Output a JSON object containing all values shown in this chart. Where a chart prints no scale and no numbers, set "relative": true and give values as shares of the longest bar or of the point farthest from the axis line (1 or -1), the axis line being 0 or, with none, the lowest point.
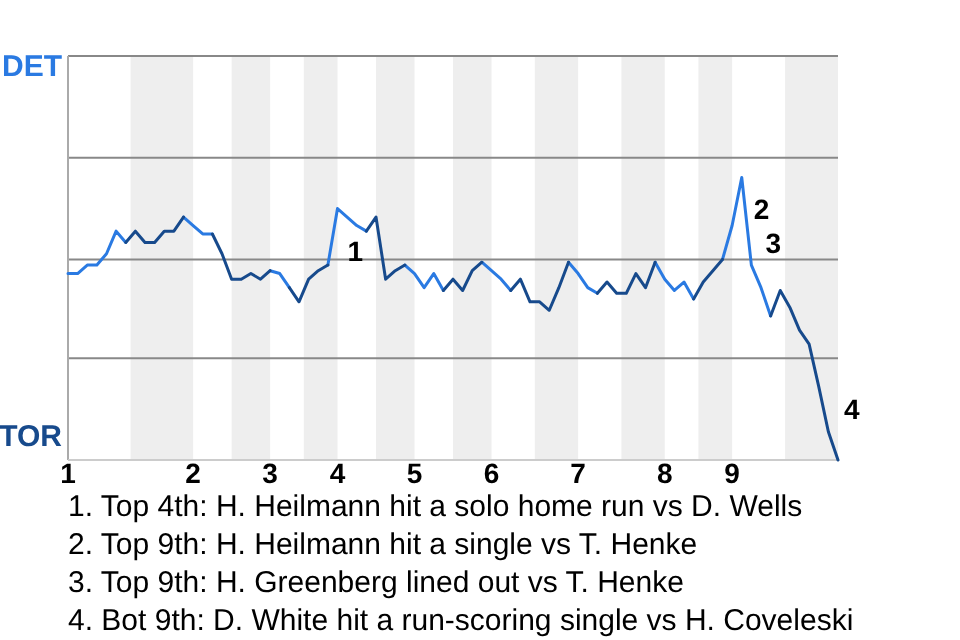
{
  "chart_data": {
    "type": "line",
    "relative": true,
    "categories": [
      "1",
      null,
      null,
      null,
      null,
      null,
      null,
      null,
      null,
      null,
      null,
      null,
      null,
      "2",
      null,
      null,
      null,
      null,
      null,
      null,
      null,
      "3",
      null,
      null,
      null,
      null,
      null,
      null,
      "4",
      null,
      null,
      null,
      null,
      null,
      null,
      null,
      "5",
      null,
      null,
      null,
      null,
      null,
      null,
      null,
      "6",
      null,
      null,
      null,
      null,
      null,
      null,
      null,
      null,
      "7",
      null,
      null,
      null,
      null,
      null,
      null,
      null,
      null,
      "8",
      null,
      null,
      null,
      null,
      null,
      null,
      "9",
      null,
      null,
      null,
      null,
      null,
      null,
      null,
      null,
      null,
      null,
      null
    ],
    "series": [
      {
        "color": "#2a7ae2",
        "values": [
          0.66,
          0.66,
          0.69,
          0.69,
          0.73,
          0.81,
          0.77,
          null,
          null,
          null,
          null,
          null,
          0.86,
          0.83,
          0.8,
          0.8,
          null,
          null,
          null,
          null,
          null,
          0.67,
          0.66,
          0.61,
          null,
          null,
          null,
          0.69,
          0.89,
          0.86,
          0.83,
          0.81,
          null,
          null,
          null,
          0.69,
          0.66,
          0.61,
          0.66,
          0.6,
          null,
          null,
          null,
          0.7,
          0.67,
          0.64,
          0.6,
          null,
          null,
          null,
          null,
          null,
          0.7,
          0.66,
          0.61,
          0.59,
          null,
          null,
          null,
          null,
          null,
          0.7,
          0.64,
          0.6,
          0.63,
          0.57,
          null,
          null,
          0.71,
          0.83,
          1,
          0.69,
          0.61,
          0.51,
          null,
          null,
          null,
          null,
          null,
          null,
          null
        ]
      },
      {
        "color": "#174a8c",
        "values": [
          null,
          null,
          null,
          null,
          null,
          null,
          0.77,
          0.81,
          0.77,
          0.77,
          0.81,
          0.81,
          0.86,
          null,
          null,
          0.8,
          0.73,
          0.64,
          0.64,
          0.66,
          0.64,
          0.67,
          null,
          0.61,
          0.56,
          0.64,
          0.67,
          0.69,
          null,
          null,
          null,
          0.81,
          0.86,
          0.64,
          0.67,
          0.69,
          null,
          null,
          null,
          0.6,
          0.64,
          0.6,
          0.67,
          0.7,
          null,
          null,
          0.6,
          0.64,
          0.56,
          0.56,
          0.53,
          0.61,
          0.7,
          null,
          null,
          0.59,
          0.63,
          0.59,
          0.59,
          0.66,
          0.61,
          0.7,
          null,
          null,
          null,
          0.57,
          0.63,
          0.67,
          0.71,
          null,
          null,
          null,
          null,
          0.51,
          0.6,
          0.54,
          0.46,
          0.41,
          0.26,
          0.1,
          0
        ]
      }
    ],
    "ref_lines": [
      {
        "axis": "y",
        "value": 0.36,
        "color": "#888888"
      },
      {
        "axis": "y",
        "value": 0.71,
        "color": "#888888"
      },
      {
        "axis": "y",
        "value": 1.07,
        "color": "#888888"
      },
      {
        "axis": "y",
        "value": 1.43,
        "color": "#888888"
      }
    ],
    "annotations": [
      "DET",
      "TOR",
      "1",
      "2",
      "3",
      "4",
      "1. Top 4th: H. Heilmann hit a solo home run vs D. Wells",
      "2. Top 9th: H. Heilmann hit a single vs T. Henke",
      "3. Top 9th: H. Greenberg lined out vs T. Henke",
      "4. Bot 9th: D. White hit a run-scoring single vs H. Coveleski"
    ]
  }
}
